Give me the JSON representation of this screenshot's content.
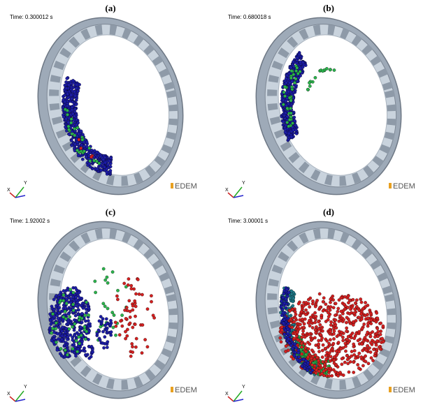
{
  "panels": [
    {
      "label": "(a)",
      "time": "Time: 0.300012 s",
      "logo": "EDEM",
      "axis_x": "X",
      "axis_y": "Y"
    },
    {
      "label": "(b)",
      "time": "Time: 0.680018 s",
      "logo": "EDEM",
      "axis_x": "X",
      "axis_y": "Y"
    },
    {
      "label": "(c)",
      "time": "Time: 1.92002 s",
      "logo": "EDEM",
      "axis_x": "X",
      "axis_y": "Y"
    },
    {
      "label": "(d)",
      "time": "Time: 3.00001 s",
      "logo": "EDEM",
      "axis_x": "X",
      "axis_y": "Y"
    }
  ]
}
